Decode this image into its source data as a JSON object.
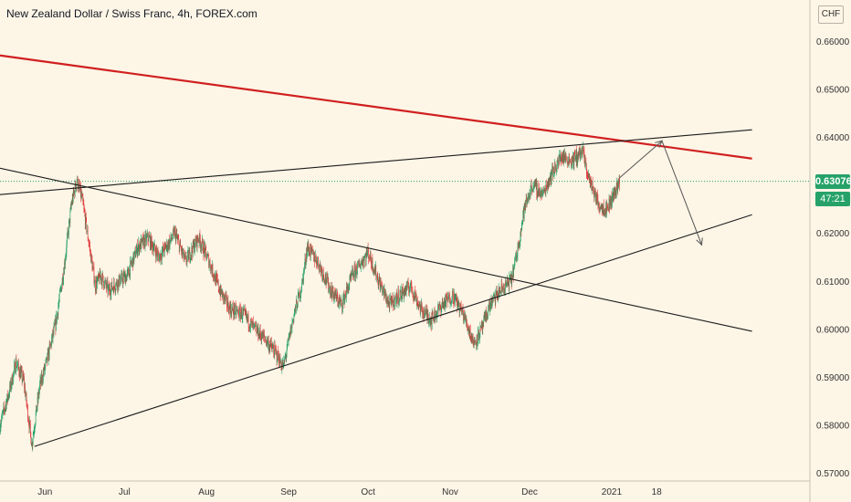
{
  "header": {
    "title": "New Zealand Dollar / Swiss Franc, 4h, FOREX.com"
  },
  "axis_badge": {
    "currency": "CHF"
  },
  "price_tag": {
    "last_price": "0.63076",
    "countdown": "47:21"
  },
  "colors": {
    "background": "#fdf5e6",
    "up_candle": "#26a269",
    "down_candle": "#e03c3c",
    "resistance_line": "#d01f1f",
    "trend_line": "#1c1c1c",
    "last_price_line": "#26a269"
  },
  "chart_data": {
    "type": "candlestick",
    "symbol": "NZDCHF",
    "timeframe": "4h",
    "y_axis": {
      "range": [
        0.5696,
        0.6682
      ],
      "ticks": [
        "0.66000",
        "0.65000",
        "0.64000",
        "0.63000",
        "0.62000",
        "0.61000",
        "0.60000",
        "0.59000",
        "0.58000",
        "0.57000"
      ]
    },
    "x_axis": {
      "ticks": [
        "Jun",
        "Jul",
        "Aug",
        "Sep",
        "Oct",
        "Nov",
        "Dec",
        "2021",
        "18"
      ]
    },
    "last_price": 0.63076,
    "price_path": [
      [
        "2020-05-15",
        0.58
      ],
      [
        "2020-05-19",
        0.588
      ],
      [
        "2020-05-21",
        0.593
      ],
      [
        "2020-05-24",
        0.589
      ],
      [
        "2020-05-27",
        0.576
      ],
      [
        "2020-05-30",
        0.588
      ],
      [
        "2020-06-02",
        0.594
      ],
      [
        "2020-06-05",
        0.601
      ],
      [
        "2020-06-08",
        0.612
      ],
      [
        "2020-06-11",
        0.626
      ],
      [
        "2020-06-13",
        0.631
      ],
      [
        "2020-06-15",
        0.627
      ],
      [
        "2020-06-17",
        0.62
      ],
      [
        "2020-06-20",
        0.609
      ],
      [
        "2020-06-22",
        0.611
      ],
      [
        "2020-06-25",
        0.608
      ],
      [
        "2020-06-29",
        0.61
      ],
      [
        "2020-07-02",
        0.611
      ],
      [
        "2020-07-06",
        0.617
      ],
      [
        "2020-07-10",
        0.619
      ],
      [
        "2020-07-14",
        0.615
      ],
      [
        "2020-07-18",
        0.618
      ],
      [
        "2020-07-20",
        0.62
      ],
      [
        "2020-07-24",
        0.614
      ],
      [
        "2020-07-29",
        0.619
      ],
      [
        "2020-08-02",
        0.614
      ],
      [
        "2020-08-06",
        0.608
      ],
      [
        "2020-08-10",
        0.604
      ],
      [
        "2020-08-15",
        0.603
      ],
      [
        "2020-08-19",
        0.6
      ],
      [
        "2020-08-23",
        0.598
      ],
      [
        "2020-08-27",
        0.595
      ],
      [
        "2020-08-30",
        0.592
      ],
      [
        "2020-09-03",
        0.603
      ],
      [
        "2020-09-06",
        0.609
      ],
      [
        "2020-09-08",
        0.617
      ],
      [
        "2020-09-12",
        0.614
      ],
      [
        "2020-09-17",
        0.608
      ],
      [
        "2020-09-21",
        0.605
      ],
      [
        "2020-09-25",
        0.611
      ],
      [
        "2020-10-01",
        0.616
      ],
      [
        "2020-10-05",
        0.61
      ],
      [
        "2020-10-09",
        0.605
      ],
      [
        "2020-10-13",
        0.607
      ],
      [
        "2020-10-17",
        0.609
      ],
      [
        "2020-10-21",
        0.604
      ],
      [
        "2020-10-25",
        0.602
      ],
      [
        "2020-10-29",
        0.605
      ],
      [
        "2020-11-02",
        0.607
      ],
      [
        "2020-11-06",
        0.603
      ],
      [
        "2020-11-10",
        0.597
      ],
      [
        "2020-11-13",
        0.6
      ],
      [
        "2020-11-16",
        0.605
      ],
      [
        "2020-11-20",
        0.608
      ],
      [
        "2020-11-24",
        0.61
      ],
      [
        "2020-11-26",
        0.615
      ],
      [
        "2020-11-29",
        0.625
      ],
      [
        "2020-12-02",
        0.63
      ],
      [
        "2020-12-06",
        0.628
      ],
      [
        "2020-12-09",
        0.632
      ],
      [
        "2020-12-13",
        0.636
      ],
      [
        "2020-12-17",
        0.635
      ],
      [
        "2020-12-21",
        0.637
      ],
      [
        "2020-12-23",
        0.632
      ],
      [
        "2020-12-27",
        0.626
      ],
      [
        "2020-12-30",
        0.625
      ],
      [
        "2021-01-01",
        0.627
      ],
      [
        "2021-01-04",
        0.631
      ]
    ],
    "drawings": [
      {
        "name": "red-resistance-line",
        "from": [
          "2020-05-15",
          0.657
        ],
        "to": [
          "2021-02-23",
          0.6355
        ]
      },
      {
        "name": "upper-channel-line",
        "from": [
          "2020-05-15",
          0.628
        ],
        "to": [
          "2021-02-23",
          0.6415
        ]
      },
      {
        "name": "descending-trend-line",
        "from": [
          "2020-05-15",
          0.6335
        ],
        "to": [
          "2021-02-23",
          0.5995
        ]
      },
      {
        "name": "ascending-support-line",
        "from": [
          "2020-05-28",
          0.5755
        ],
        "to": [
          "2021-02-23",
          0.6238
        ]
      }
    ],
    "projection": [
      [
        "2021-01-04",
        0.6315
      ],
      [
        "2021-01-20",
        0.6392
      ],
      [
        "2021-02-04",
        0.6175
      ]
    ]
  }
}
